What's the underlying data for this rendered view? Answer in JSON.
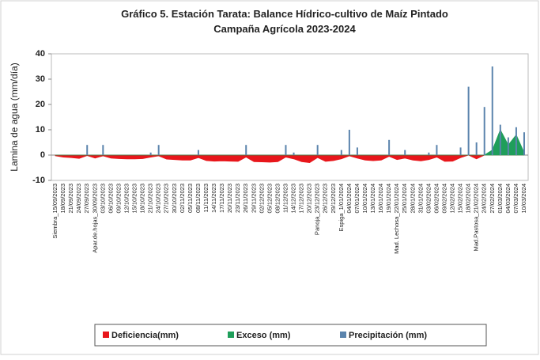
{
  "chart_data": {
    "type": "combo",
    "title": "Gráfico 5. Estación Tarata: Balance Hídrico-cultivo de Maíz Pintado",
    "subtitle": "Campaña Agrícola 2023-2024",
    "y_label": "Lamina de agua (mm/día)",
    "ylim": [
      -10,
      40
    ],
    "yticks": [
      -10,
      0,
      10,
      20,
      30,
      40
    ],
    "categories": [
      "Siembra_15/09/2023",
      "18/09/2023",
      "21/09/2023",
      "24/09/2023",
      "27/09/2023",
      "Apar.de.hojas_30/09/2023",
      "03/10/2023",
      "06/10/2023",
      "09/10/2023",
      "12/10/2023",
      "15/10/2023",
      "18/10/2023",
      "21/10/2023",
      "24/10/2023",
      "27/10/2023",
      "30/10/2023",
      "02/11/2023",
      "05/11/2023",
      "08/11/2023",
      "11/11/2023",
      "14/11/2023",
      "17/11/2023",
      "20/11/2023",
      "23/11/2023",
      "26/11/2023",
      "29/11/2023",
      "02/12/2023",
      "05/12/2023",
      "08/12/2023",
      "11/12/2023",
      "14/12/2023",
      "17/12/2023",
      "20/12/2023",
      "Panoja_23/12/2023",
      "26/12/2023",
      "29/12/2023",
      "Espiga_1/01/2024",
      "04/01/2024",
      "07/01/2024",
      "10/01/2024",
      "13/01/2024",
      "16/01/2024",
      "19/01/2024",
      "Mad. Lechosa_22/01/2024",
      "25/01/2024",
      "28/01/2024",
      "31/01/2024",
      "03/02/2024",
      "06/02/2024",
      "09/02/2024",
      "12/02/2024",
      "15/02/2024",
      "18/02/2024",
      "Mad.Pastosa_21/02/2024",
      "24/02/2024",
      "27/02/2024",
      "01/03/2024",
      "04/03/2024",
      "07/03/2024",
      "10/03/2024"
    ],
    "series": [
      {
        "name": "Deficiencia(mm)",
        "type": "area",
        "color": "#e8161b",
        "values": [
          -0.3,
          -0.8,
          -1.0,
          -1.3,
          -0.2,
          -1.2,
          -0.3,
          -1.2,
          -1.4,
          -1.5,
          -1.5,
          -1.4,
          -0.8,
          -0.3,
          -1.6,
          -1.8,
          -2.0,
          -2.0,
          -1.0,
          -2.2,
          -2.4,
          -2.3,
          -2.4,
          -2.5,
          -0.8,
          -2.6,
          -2.7,
          -2.8,
          -2.6,
          -0.8,
          -1.5,
          -2.6,
          -3.0,
          -1.0,
          -2.5,
          -2.2,
          -1.5,
          -0.3,
          -1.2,
          -2.0,
          -2.2,
          -2.0,
          -0.5,
          -1.8,
          -1.2,
          -2.0,
          -2.3,
          -1.8,
          -0.8,
          -2.5,
          -2.4,
          -1.0,
          0,
          -1.5,
          0,
          0,
          0,
          0,
          0,
          0
        ]
      },
      {
        "name": "Exceso (mm)",
        "type": "area",
        "color": "#1f9e5a",
        "values": [
          0,
          0,
          0,
          0,
          0,
          0,
          0,
          0,
          0,
          0,
          0,
          0,
          0,
          0,
          0,
          0,
          0,
          0,
          0,
          0,
          0,
          0,
          0,
          0,
          0,
          0,
          0,
          0,
          0,
          0,
          0,
          0,
          0,
          0,
          0,
          0,
          0,
          0,
          0,
          0,
          0,
          0,
          0,
          0,
          0,
          0,
          0,
          0,
          0,
          0,
          0,
          0,
          0,
          0,
          0,
          2,
          10,
          4,
          8,
          1
        ]
      },
      {
        "name": "Precipitación (mm)",
        "type": "bar",
        "color": "#5b84ad",
        "values": [
          0,
          0,
          0,
          0,
          4,
          0,
          4,
          0,
          0,
          0,
          0,
          0,
          1,
          4,
          0,
          0,
          0,
          0,
          2,
          0,
          0,
          0,
          0,
          0,
          4,
          0,
          0,
          0,
          0,
          4,
          1,
          0,
          0,
          4,
          0,
          0,
          2,
          10,
          3,
          0,
          0,
          0,
          6,
          0,
          2,
          0,
          0,
          1,
          4,
          0,
          0,
          3,
          27,
          5,
          19,
          35,
          12,
          7,
          11,
          9
        ]
      }
    ],
    "legend": "bottom"
  }
}
